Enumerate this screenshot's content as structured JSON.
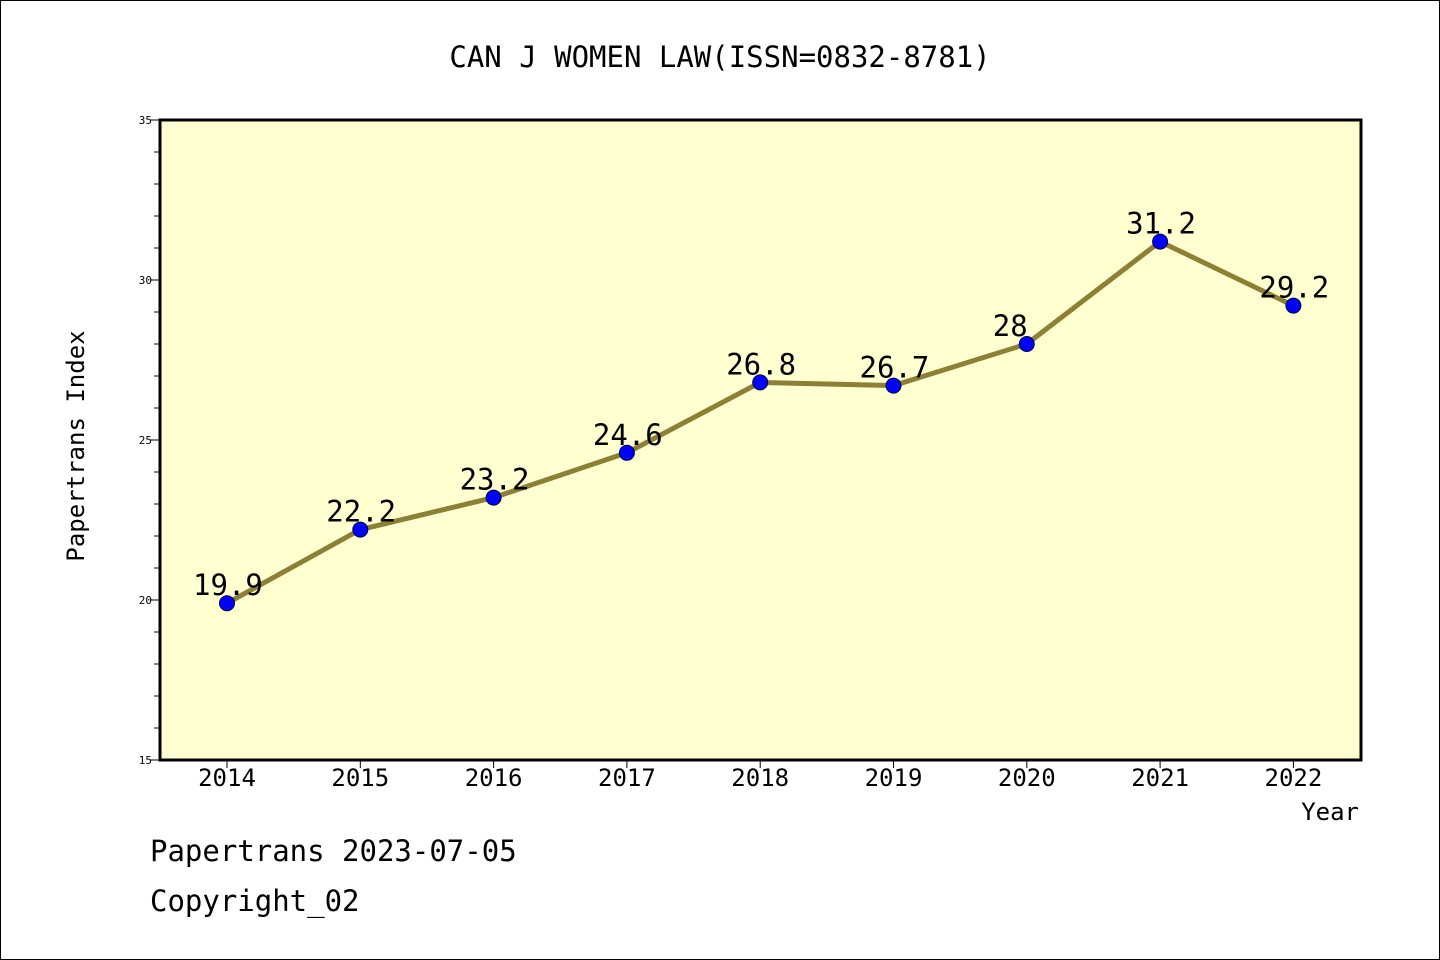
{
  "chart_data": {
    "type": "line",
    "title": "CAN J WOMEN LAW(ISSN=0832-8781)",
    "xlabel": "Year",
    "ylabel": "Papertrans Index",
    "categories": [
      "2014",
      "2015",
      "2016",
      "2017",
      "2018",
      "2019",
      "2020",
      "2021",
      "2022"
    ],
    "values": [
      19.9,
      22.2,
      23.2,
      24.6,
      26.8,
      26.7,
      28,
      31.2,
      29.2
    ],
    "data_labels": [
      "19.9",
      "22.2",
      "23.2",
      "24.6",
      "26.8",
      "26.7",
      "28",
      "31.2",
      "29.2"
    ],
    "ylim": [
      15,
      35
    ],
    "yticks": [
      "15",
      "20",
      "25",
      "30",
      "35"
    ],
    "grid": false,
    "legend": "none",
    "colors": {
      "plot_background": "#ffffd0",
      "line": "#8b8035",
      "marker": "#0000ff"
    }
  },
  "footer": {
    "line1": "Papertrans 2023-07-05",
    "line2": "Copyright_02"
  }
}
